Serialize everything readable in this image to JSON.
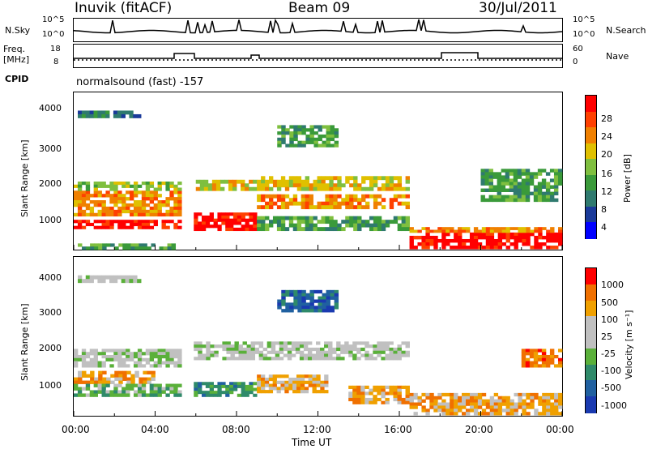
{
  "header": {
    "station": "Inuvik (fitACF)",
    "beam": "Beam 09",
    "date": "30/Jul/2011"
  },
  "status": {
    "nsky_label": "N.Sky",
    "nsky_ticks": [
      "10^5",
      "10^0"
    ],
    "nsearch_label": "N.Search",
    "nsearch_ticks": [
      "10^5",
      "10^0"
    ],
    "freq_label": "Freq.",
    "freq_unit": "[MHz]",
    "freq_ticks": [
      "18",
      "8"
    ],
    "nave_label": "Nave",
    "nave_ticks": [
      "60",
      "0"
    ],
    "cpid_label": "CPID",
    "cpid_value": "normalsound (fast) -157"
  },
  "colors": {
    "power_scale": [
      "#0000ff",
      "#1a3a9a",
      "#2f7a6f",
      "#3a9a3a",
      "#7fbf3f",
      "#e0c000",
      "#f08000",
      "#ff4000",
      "#ff0000"
    ],
    "velocity_scale": [
      "#1a3ab0",
      "#2060a0",
      "#2f8a6a",
      "#5ab03a",
      "#c0c0c0",
      "#c0c0c0",
      "#f0a000",
      "#f07000",
      "#ff0000"
    ]
  },
  "chart_data": [
    {
      "type": "heatmap",
      "name": "power",
      "ylabel": "Slant Range [km]",
      "colorbar_label": "Power [dB]",
      "colorbar_ticks": [
        "28",
        "24",
        "20",
        "16",
        "12",
        "8",
        "4"
      ],
      "yticks": [
        "4000",
        "3000",
        "2000",
        "1000"
      ],
      "ylim": [
        180,
        4500
      ],
      "xlim": [
        0,
        24
      ],
      "bands": [
        {
          "t0": 0.0,
          "t1": 5.3,
          "r0": 750,
          "r1": 1000,
          "level": 8
        },
        {
          "t0": 0.0,
          "t1": 5.3,
          "r0": 1100,
          "r1": 1800,
          "level": 6
        },
        {
          "t0": 0.0,
          "t1": 5.3,
          "r0": 1800,
          "r1": 2050,
          "level": 4
        },
        {
          "t0": 5.9,
          "t1": 9.0,
          "r0": 700,
          "r1": 1200,
          "level": 8
        },
        {
          "t0": 6.0,
          "t1": 9.0,
          "r0": 1800,
          "r1": 2100,
          "level": 5
        },
        {
          "t0": 9.0,
          "t1": 16.5,
          "r0": 1300,
          "r1": 1700,
          "level": 6
        },
        {
          "t0": 9.0,
          "t1": 16.5,
          "r0": 1800,
          "r1": 2200,
          "level": 5
        },
        {
          "t0": 9.0,
          "t1": 16.5,
          "r0": 700,
          "r1": 1100,
          "level": 3
        },
        {
          "t0": 10.0,
          "t1": 13.0,
          "r0": 3000,
          "r1": 3600,
          "level": 3
        },
        {
          "t0": 16.5,
          "t1": 24.0,
          "r0": 200,
          "r1": 650,
          "level": 8
        },
        {
          "t0": 16.5,
          "t1": 24.0,
          "r0": 650,
          "r1": 800,
          "level": 6
        },
        {
          "t0": 0.0,
          "t1": 5.0,
          "r0": 180,
          "r1": 350,
          "level": 3
        },
        {
          "t0": 0.2,
          "t1": 3.5,
          "r0": 3800,
          "r1": 4000,
          "level": 2
        },
        {
          "t0": 20.0,
          "t1": 24.0,
          "r0": 1500,
          "r1": 2400,
          "level": 3
        }
      ]
    },
    {
      "type": "heatmap",
      "name": "velocity",
      "ylabel": "Slant Range [km]",
      "colorbar_label": "Velocity [m s⁻¹]",
      "colorbar_ticks": [
        "1000",
        "500",
        "100",
        "25",
        "-25",
        "-100",
        "-500",
        "-1000"
      ],
      "yticks": [
        "4000",
        "3000",
        "2000",
        "1000"
      ],
      "ylim": [
        180,
        4500
      ],
      "xlim": [
        0,
        24
      ],
      "xlabel": "Time UT",
      "xticks": [
        "00:00",
        "04:00",
        "08:00",
        "12:00",
        "16:00",
        "20:00",
        "00:00"
      ],
      "bands": [
        {
          "t0": 0.0,
          "t1": 5.3,
          "r0": 1500,
          "r1": 2000,
          "level": 4
        },
        {
          "t0": 0.0,
          "t1": 4.0,
          "r0": 1050,
          "r1": 1400,
          "level": 6
        },
        {
          "t0": 0.0,
          "t1": 5.3,
          "r0": 700,
          "r1": 1050,
          "level": 3
        },
        {
          "t0": 5.9,
          "t1": 9.0,
          "r0": 700,
          "r1": 1100,
          "level": 2
        },
        {
          "t0": 5.9,
          "t1": 16.5,
          "r0": 1700,
          "r1": 2200,
          "level": 4
        },
        {
          "t0": 9.0,
          "t1": 12.5,
          "r0": 800,
          "r1": 1300,
          "level": 6
        },
        {
          "t0": 10.0,
          "t1": 13.0,
          "r0": 3000,
          "r1": 3600,
          "level": 1
        },
        {
          "t0": 13.5,
          "t1": 16.5,
          "r0": 500,
          "r1": 1000,
          "level": 6
        },
        {
          "t0": 16.5,
          "t1": 24.0,
          "r0": 200,
          "r1": 800,
          "level": 6
        },
        {
          "t0": 22.0,
          "t1": 24.0,
          "r0": 1500,
          "r1": 2000,
          "level": 7
        },
        {
          "t0": 0.2,
          "t1": 3.5,
          "r0": 3800,
          "r1": 4000,
          "level": 4
        }
      ]
    }
  ]
}
